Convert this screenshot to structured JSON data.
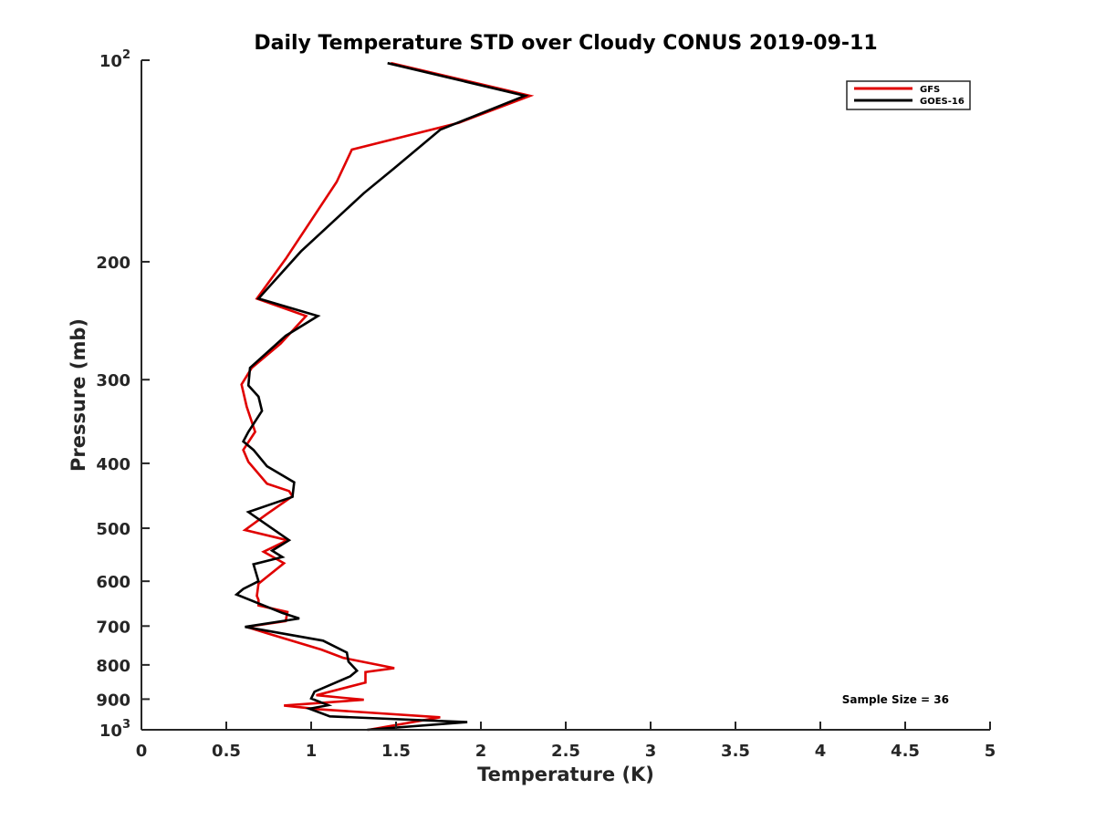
{
  "chart_data": {
    "type": "line",
    "title": "Daily Temperature STD over Cloudy CONUS 2019-09-11",
    "xlabel": "Temperature (K)",
    "ylabel": "Pressure (mb)",
    "xlim": [
      0,
      5
    ],
    "ylim": [
      100,
      1000
    ],
    "y_scale": "log",
    "y_reversed": true,
    "grid": false,
    "legend_position": "top-right",
    "x_ticks": [
      {
        "value": 0,
        "label": "0"
      },
      {
        "value": 0.5,
        "label": "0.5"
      },
      {
        "value": 1,
        "label": "1"
      },
      {
        "value": 1.5,
        "label": "1.5"
      },
      {
        "value": 2,
        "label": "2"
      },
      {
        "value": 2.5,
        "label": "2.5"
      },
      {
        "value": 3,
        "label": "3"
      },
      {
        "value": 3.5,
        "label": "3.5"
      },
      {
        "value": 4,
        "label": "4"
      },
      {
        "value": 4.5,
        "label": "4.5"
      },
      {
        "value": 5,
        "label": "5"
      }
    ],
    "y_ticks": [
      {
        "value": 100,
        "label": "10",
        "sup": "2"
      },
      {
        "value": 200,
        "label": "200"
      },
      {
        "value": 300,
        "label": "300"
      },
      {
        "value": 400,
        "label": "400"
      },
      {
        "value": 500,
        "label": "500"
      },
      {
        "value": 600,
        "label": "600"
      },
      {
        "value": 700,
        "label": "700"
      },
      {
        "value": 800,
        "label": "800"
      },
      {
        "value": 900,
        "label": "900"
      },
      {
        "value": 1000,
        "label": "10",
        "sup": "3"
      }
    ],
    "series": [
      {
        "name": "GFS",
        "color": "#e00000",
        "x": [
          1.47,
          2.29,
          1.87,
          1.24,
          1.15,
          0.85,
          0.68,
          0.97,
          0.82,
          0.65,
          0.59,
          0.62,
          0.67,
          0.6,
          0.63,
          0.74,
          0.87,
          0.89,
          0.74,
          0.61,
          0.86,
          0.72,
          0.84,
          0.69,
          0.68,
          0.69,
          0.69,
          0.86,
          0.85,
          0.62,
          0.75,
          1.06,
          1.19,
          1.49,
          1.32,
          1.32,
          1.03,
          1.31,
          0.84,
          1.05,
          1.76,
          1.34
        ],
        "y": [
          101,
          113,
          124,
          136,
          152,
          198,
          227,
          241,
          265,
          288,
          305,
          329,
          359,
          382,
          398,
          429,
          440,
          448,
          476,
          503,
          521,
          542,
          564,
          605,
          631,
          640,
          652,
          667,
          688,
          702,
          719,
          759,
          781,
          809,
          820,
          850,
          888,
          902,
          920,
          932,
          958,
          1000
        ]
      },
      {
        "name": "GOES-16",
        "color": "#000000",
        "x": [
          1.45,
          2.26,
          1.76,
          1.49,
          1.31,
          0.94,
          0.69,
          1.04,
          0.85,
          0.64,
          0.63,
          0.69,
          0.71,
          0.63,
          0.6,
          0.66,
          0.74,
          0.9,
          0.89,
          0.63,
          0.87,
          0.77,
          0.83,
          0.66,
          0.69,
          0.6,
          0.56,
          0.83,
          0.93,
          0.61,
          1.07,
          1.21,
          1.22,
          1.27,
          1.23,
          1.02,
          1.0,
          1.1,
          0.99,
          1.11,
          1.92,
          1.33
        ],
        "y": [
          101,
          113,
          127,
          145,
          158,
          193,
          227,
          241,
          258,
          288,
          306,
          318,
          334,
          359,
          371,
          382,
          404,
          427,
          449,
          473,
          521,
          540,
          552,
          566,
          600,
          616,
          628,
          669,
          682,
          702,
          736,
          767,
          791,
          816,
          832,
          877,
          898,
          919,
          930,
          955,
          974,
          1000
        ]
      }
    ],
    "annotation": "Sample Size = 36"
  }
}
